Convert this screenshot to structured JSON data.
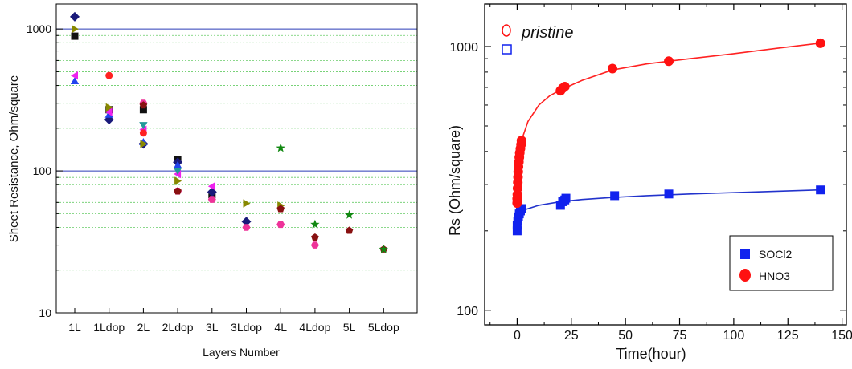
{
  "colors": {
    "axis": "#000000",
    "ref_line": "#2a3bb8",
    "minor_grid": "#66cc66",
    "red": "#ff1111",
    "blue": "#1122ee",
    "red_line": "#ff2222",
    "blue_line": "#2233cc"
  },
  "chart_data": [
    {
      "type": "scatter",
      "xlabel": "Layers Number",
      "ylabel": "Sheet Resistance, Ohm/square",
      "y_scale": "log",
      "ylim": [
        10,
        1500
      ],
      "y_ticks": [
        "10",
        "100",
        "1000"
      ],
      "categories": [
        "1L",
        "1Ldop",
        "2L",
        "2Ldop",
        "3L",
        "3Ldop",
        "4L",
        "4Ldop",
        "5L",
        "5Ldop"
      ],
      "reference_lines": [
        100,
        1000
      ],
      "grid": "minor y dotted",
      "series": [
        {
          "marker": "square",
          "color": "#111111",
          "points": [
            [
              "1L",
              890
            ],
            [
              "1Ldop",
              270
            ],
            [
              "2L",
              270
            ],
            [
              "2Ldop",
              120
            ],
            [
              "3L",
              68
            ]
          ]
        },
        {
          "marker": "diamond",
          "color": "#1a1a7a",
          "points": [
            [
              "1L",
              1220
            ],
            [
              "1Ldop",
              230
            ],
            [
              "2L",
              155
            ],
            [
              "2Ldop",
              115
            ],
            [
              "3L",
              71
            ],
            [
              "3Ldop",
              44
            ]
          ]
        },
        {
          "marker": "triangle-up",
          "color": "#2244ee",
          "points": [
            [
              "1L",
              430
            ],
            [
              "1Ldop",
              250
            ],
            [
              "2L",
              160
            ],
            [
              "2Ldop",
              110
            ]
          ]
        },
        {
          "marker": "triangle-right",
          "color": "#888800",
          "points": [
            [
              "1L",
              1000
            ],
            [
              "1Ldop",
              280
            ],
            [
              "2L",
              155
            ],
            [
              "2Ldop",
              85
            ],
            [
              "3Ldop",
              59
            ],
            [
              "4L",
              57
            ]
          ]
        },
        {
          "marker": "triangle-left",
          "color": "#ee22ee",
          "points": [
            [
              "1L",
              470
            ],
            [
              "1Ldop",
              260
            ],
            [
              "2L",
              195
            ],
            [
              "2Ldop",
              95
            ],
            [
              "3L",
              78
            ]
          ]
        },
        {
          "marker": "circle",
          "color": "#ff2222",
          "points": [
            [
              "1Ldop",
              470
            ],
            [
              "2L",
              185
            ]
          ]
        },
        {
          "marker": "hexagon",
          "color": "#ee3399",
          "points": [
            [
              "2L",
              300
            ],
            [
              "2Ldop",
              72
            ],
            [
              "3L",
              63
            ],
            [
              "3Ldop",
              40
            ],
            [
              "4L",
              42
            ],
            [
              "4Ldop",
              30
            ]
          ]
        },
        {
          "marker": "triangle-down",
          "color": "#229999",
          "points": [
            [
              "2L",
              210
            ],
            [
              "2Ldop",
              100
            ]
          ]
        },
        {
          "marker": "pentagon",
          "color": "#881111",
          "points": [
            [
              "2L",
              290
            ],
            [
              "2Ldop",
              72
            ],
            [
              "4L",
              54
            ],
            [
              "4Ldop",
              34
            ],
            [
              "5L",
              38
            ],
            [
              "5Ldop",
              28
            ]
          ]
        },
        {
          "marker": "star",
          "color": "#118811",
          "points": [
            [
              "4L",
              145
            ],
            [
              "4Ldop",
              42
            ],
            [
              "5L",
              49
            ],
            [
              "5Ldop",
              28
            ]
          ]
        }
      ]
    },
    {
      "type": "scatter",
      "xlabel": "Time(hour)",
      "ylabel": "Rs (Ohm/square)",
      "y_scale": "log",
      "xlim": [
        -15,
        152
      ],
      "ylim": [
        88,
        1450
      ],
      "x_ticks": [
        0,
        25,
        50,
        75,
        100,
        125,
        150
      ],
      "y_ticks": [
        100,
        1000
      ],
      "legend_position": "bottom-right",
      "pristine_legend_label": "pristine",
      "series": [
        {
          "name": "SOCl2",
          "color": "#1122ee",
          "marker": "square",
          "pristine": 200,
          "points": [
            [
              0,
              200
            ],
            [
              0,
              210
            ],
            [
              0.3,
              218
            ],
            [
              0.6,
              226
            ],
            [
              1,
              232
            ],
            [
              1.5,
              238
            ],
            [
              2,
              243
            ],
            [
              20,
              250
            ],
            [
              21,
              258
            ],
            [
              22,
              262
            ],
            [
              22.5,
              266
            ],
            [
              45,
              272
            ],
            [
              70,
              276
            ],
            [
              140,
              286
            ]
          ],
          "fit": [
            [
              0,
              212
            ],
            [
              1,
              232
            ],
            [
              3,
              240
            ],
            [
              10,
              250
            ],
            [
              20,
              258
            ],
            [
              30,
              263
            ],
            [
              45,
              268
            ],
            [
              60,
              272
            ],
            [
              80,
              276
            ],
            [
              110,
              281
            ],
            [
              140,
              286
            ]
          ]
        },
        {
          "name": "HNO3",
          "color": "#ff1111",
          "marker": "circle",
          "pristine": 255,
          "points": [
            [
              0,
              255
            ],
            [
              0,
              265
            ],
            [
              0.1,
              275
            ],
            [
              0.2,
              290
            ],
            [
              0.3,
              305
            ],
            [
              0.4,
              320
            ],
            [
              0.5,
              335
            ],
            [
              0.6,
              350
            ],
            [
              0.8,
              365
            ],
            [
              1,
              380
            ],
            [
              1.2,
              395
            ],
            [
              1.5,
              410
            ],
            [
              1.8,
              425
            ],
            [
              2,
              440
            ],
            [
              20,
              680
            ],
            [
              21,
              695
            ],
            [
              22,
              705
            ],
            [
              44,
              825
            ],
            [
              70,
              880
            ],
            [
              140,
              1030
            ]
          ],
          "fit": [
            [
              0,
              255
            ],
            [
              0.3,
              310
            ],
            [
              1,
              380
            ],
            [
              2,
              440
            ],
            [
              5,
              520
            ],
            [
              10,
              600
            ],
            [
              15,
              650
            ],
            [
              20,
              685
            ],
            [
              30,
              745
            ],
            [
              44,
              815
            ],
            [
              60,
              860
            ],
            [
              80,
              900
            ],
            [
              100,
              940
            ],
            [
              120,
              985
            ],
            [
              140,
              1030
            ]
          ]
        }
      ]
    }
  ]
}
